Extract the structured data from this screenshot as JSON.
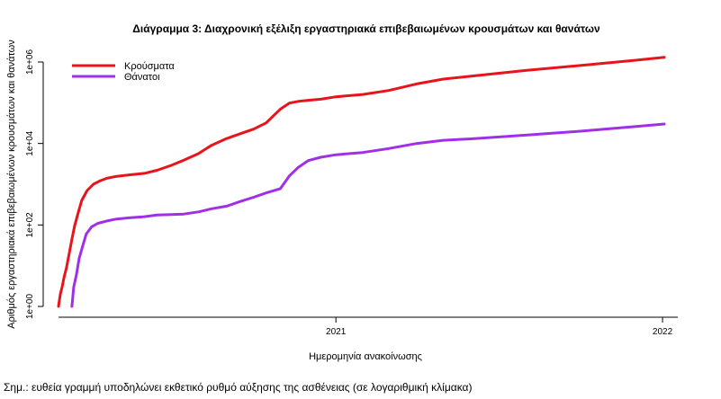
{
  "chart_data": {
    "type": "line",
    "title": "Διάγραμμα 3: Διαχρονική εξέλιξη εργαστηριακά επιβεβαιωμένων κρουσμάτων και θανάτων",
    "xlabel": "Ημερομηνία ανακοίνωσης",
    "ylabel": "Αριθμός εργαστηριακά επιβεβαιωμένων κρουσμάτων και θανάτων",
    "y_scale": "log",
    "ylim": [
      1,
      1000000
    ],
    "xlim": [
      "2020-02-26",
      "2022-01-10"
    ],
    "x_ticks": [
      {
        "date": "2021-01-01",
        "label": "2021"
      },
      {
        "date": "2022-01-01",
        "label": "2022"
      }
    ],
    "y_ticks": [
      {
        "value": 1,
        "label": "1e+00"
      },
      {
        "value": 100,
        "label": "1e+02"
      },
      {
        "value": 10000,
        "label": "1e+04"
      },
      {
        "value": 1000000,
        "label": "1e+06"
      }
    ],
    "grid": false,
    "legend_position": "top-left",
    "series": [
      {
        "name": "Κρούσματα",
        "color": "#e8141b",
        "x": [
          "2020-02-26",
          "2020-02-28",
          "2020-03-01",
          "2020-03-03",
          "2020-03-06",
          "2020-03-09",
          "2020-03-12",
          "2020-03-15",
          "2020-03-19",
          "2020-03-23",
          "2020-03-29",
          "2020-04-05",
          "2020-04-12",
          "2020-04-20",
          "2020-04-30",
          "2020-05-15",
          "2020-06-01",
          "2020-06-15",
          "2020-07-01",
          "2020-07-15",
          "2020-07-31",
          "2020-08-15",
          "2020-08-31",
          "2020-09-15",
          "2020-10-01",
          "2020-10-15",
          "2020-10-31",
          "2020-11-10",
          "2020-11-20",
          "2020-12-01",
          "2020-12-15",
          "2021-01-01",
          "2021-01-31",
          "2021-03-01",
          "2021-04-01",
          "2021-05-01",
          "2021-06-01",
          "2021-08-01",
          "2021-10-01",
          "2021-12-01",
          "2022-01-03"
        ],
        "values": [
          1,
          2,
          3,
          5,
          9,
          20,
          45,
          95,
          200,
          400,
          700,
          1000,
          1200,
          1400,
          1550,
          1700,
          1850,
          2200,
          2900,
          3900,
          5600,
          9000,
          13000,
          17000,
          22500,
          32000,
          70000,
          98000,
          108000,
          115000,
          122000,
          140000,
          160000,
          200000,
          290000,
          380000,
          450000,
          620000,
          820000,
          1100000,
          1300000
        ]
      },
      {
        "name": "Θάνατοι",
        "color": "#a030e8",
        "x": [
          "2020-03-12",
          "2020-03-14",
          "2020-03-17",
          "2020-03-20",
          "2020-03-24",
          "2020-03-28",
          "2020-04-03",
          "2020-04-10",
          "2020-04-20",
          "2020-05-01",
          "2020-05-15",
          "2020-06-01",
          "2020-06-15",
          "2020-07-01",
          "2020-07-15",
          "2020-08-01",
          "2020-08-15",
          "2020-09-01",
          "2020-09-15",
          "2020-10-01",
          "2020-10-15",
          "2020-10-31",
          "2020-11-10",
          "2020-11-20",
          "2020-12-01",
          "2020-12-15",
          "2021-01-01",
          "2021-01-31",
          "2021-03-01",
          "2021-04-01",
          "2021-05-01",
          "2021-06-01",
          "2021-08-01",
          "2021-10-01",
          "2021-12-01",
          "2022-01-03"
        ],
        "values": [
          1,
          3,
          6,
          15,
          30,
          60,
          90,
          110,
          125,
          140,
          150,
          160,
          175,
          180,
          185,
          210,
          250,
          290,
          370,
          480,
          610,
          780,
          1600,
          2600,
          3800,
          4600,
          5300,
          6000,
          7500,
          10000,
          12000,
          13000,
          16000,
          20000,
          26000,
          30000
        ]
      }
    ]
  },
  "note": "Σημ.: ευθεία γραμμή υποδηλώνει εκθετικό ρυθμό αύξησης της ασθένειας (σε λογαριθμική κλίμακα)"
}
